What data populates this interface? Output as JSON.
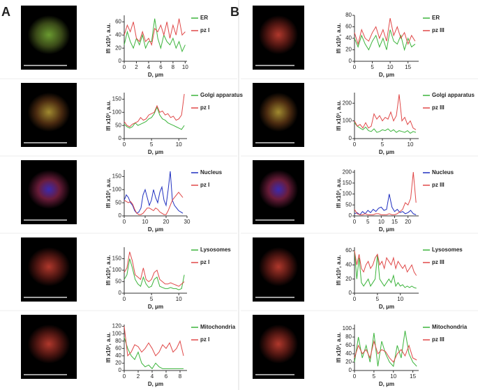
{
  "panels": [
    "A",
    "B"
  ],
  "chart_data": [
    {
      "type": "line",
      "xlabel": "D, μm",
      "ylabel": "Ifl x10³, a.u.",
      "xlim": [
        0,
        10.3
      ],
      "xticks": [
        0,
        2,
        4,
        6,
        8,
        10
      ],
      "ylim": [
        0,
        70
      ],
      "yticks": [
        0,
        20,
        40,
        60
      ],
      "x": [
        0,
        0.5,
        1,
        1.5,
        2,
        2.5,
        3,
        3.5,
        4,
        4.5,
        5,
        5.5,
        6,
        6.5,
        7,
        7.5,
        8,
        8.5,
        9,
        9.5,
        10
      ],
      "series": [
        {
          "name": "ER",
          "color": "#3cb43c",
          "values": [
            25,
            45,
            30,
            20,
            35,
            25,
            40,
            20,
            30,
            30,
            65,
            35,
            20,
            40,
            30,
            25,
            35,
            20,
            30,
            15,
            25
          ]
        },
        {
          "name": "pz I",
          "color": "#e04848",
          "values": [
            40,
            55,
            45,
            60,
            35,
            30,
            45,
            30,
            35,
            25,
            50,
            45,
            55,
            40,
            60,
            35,
            55,
            40,
            65,
            40,
            45
          ]
        }
      ]
    },
    {
      "type": "line",
      "xlabel": "D, μm",
      "ylabel": "Ifl x10³, a.u.",
      "xlim": [
        0,
        11.5
      ],
      "xticks": [
        0,
        5,
        10
      ],
      "ylim": [
        0,
        175
      ],
      "yticks": [
        0,
        50,
        100,
        150
      ],
      "x": [
        0,
        0.5,
        1,
        1.5,
        2,
        2.5,
        3,
        3.5,
        4,
        4.5,
        5,
        5.5,
        6,
        6.5,
        7,
        7.5,
        8,
        8.5,
        9,
        9.5,
        10,
        10.5,
        11
      ],
      "series": [
        {
          "name": "Golgi apparatus",
          "color": "#3cb43c",
          "values": [
            55,
            45,
            40,
            45,
            60,
            50,
            55,
            60,
            65,
            75,
            80,
            95,
            120,
            90,
            75,
            70,
            60,
            55,
            50,
            45,
            40,
            35,
            50
          ]
        },
        {
          "name": "pz I",
          "color": "#e04848",
          "values": [
            65,
            50,
            45,
            55,
            60,
            65,
            80,
            70,
            75,
            90,
            95,
            100,
            125,
            100,
            105,
            90,
            95,
            80,
            85,
            70,
            75,
            90,
            170
          ]
        }
      ]
    },
    {
      "type": "line",
      "xlabel": "D, μm",
      "ylabel": "Ifl x10³, a.u.",
      "xlim": [
        0,
        30
      ],
      "xticks": [
        0,
        10,
        20,
        30
      ],
      "ylim": [
        0,
        175
      ],
      "yticks": [
        0,
        50,
        100,
        150
      ],
      "x": [
        0,
        1,
        2,
        3,
        4,
        5,
        6,
        7,
        8,
        9,
        10,
        11,
        12,
        13,
        14,
        15,
        16,
        17,
        18,
        19,
        20,
        21,
        22,
        23,
        24,
        25,
        26,
        27,
        28
      ],
      "series": [
        {
          "name": "Nucleus",
          "color": "#2030c0",
          "values": [
            60,
            80,
            70,
            50,
            40,
            20,
            10,
            15,
            30,
            80,
            100,
            70,
            40,
            60,
            100,
            70,
            50,
            90,
            110,
            60,
            40,
            100,
            170,
            60,
            40,
            30,
            20,
            15,
            10
          ]
        },
        {
          "name": "pz I",
          "color": "#e04848",
          "values": [
            60,
            55,
            50,
            55,
            45,
            25,
            10,
            5,
            5,
            10,
            20,
            30,
            30,
            25,
            20,
            30,
            25,
            15,
            10,
            5,
            5,
            20,
            40,
            60,
            70,
            80,
            90,
            80,
            70
          ]
        }
      ]
    },
    {
      "type": "line",
      "xlabel": "D, μm",
      "ylabel": "Ifl x10³, a.u.",
      "xlim": [
        0,
        11.5
      ],
      "xticks": [
        0,
        5,
        10
      ],
      "ylim": [
        0,
        200
      ],
      "yticks": [
        0,
        50,
        100,
        150
      ],
      "x": [
        0,
        0.5,
        1,
        1.5,
        2,
        2.5,
        3,
        3.5,
        4,
        4.5,
        5,
        5.5,
        6,
        6.5,
        7,
        7.5,
        8,
        8.5,
        9,
        9.5,
        10,
        10.5,
        11
      ],
      "series": [
        {
          "name": "Lysosomes",
          "color": "#3cb43c",
          "values": [
            60,
            80,
            150,
            110,
            60,
            40,
            30,
            70,
            40,
            25,
            30,
            60,
            70,
            30,
            25,
            20,
            20,
            25,
            20,
            20,
            15,
            20,
            80
          ]
        },
        {
          "name": "pz I",
          "color": "#e04848",
          "values": [
            90,
            110,
            180,
            140,
            80,
            70,
            60,
            110,
            60,
            50,
            60,
            90,
            100,
            60,
            50,
            40,
            40,
            45,
            40,
            35,
            30,
            40,
            50
          ]
        }
      ]
    },
    {
      "type": "line",
      "xlabel": "D, μm",
      "ylabel": "Ifl x10³, a.u.",
      "xlim": [
        0,
        9
      ],
      "xticks": [
        0,
        2,
        4,
        6,
        8
      ],
      "ylim": [
        0,
        125
      ],
      "yticks": [
        0,
        20,
        40,
        60,
        80,
        100,
        120
      ],
      "x": [
        0,
        0.5,
        1,
        1.5,
        2,
        2.5,
        3,
        3.5,
        4,
        4.5,
        5,
        5.5,
        6,
        6.5,
        7,
        7.5,
        8,
        8.5
      ],
      "series": [
        {
          "name": "Mitochondria",
          "color": "#3cb43c",
          "values": [
            90,
            60,
            40,
            30,
            50,
            20,
            10,
            15,
            5,
            20,
            10,
            5,
            5,
            5,
            5,
            5,
            5,
            5
          ]
        },
        {
          "name": "pz I",
          "color": "#e04848",
          "values": [
            120,
            40,
            50,
            70,
            65,
            50,
            60,
            75,
            60,
            40,
            50,
            70,
            60,
            75,
            50,
            60,
            80,
            40
          ]
        }
      ]
    },
    {
      "type": "line",
      "xlabel": "D, μm",
      "ylabel": "Ifl x10³, a.u.",
      "xlim": [
        0,
        18
      ],
      "xticks": [
        0,
        5,
        10,
        15
      ],
      "ylim": [
        0,
        80
      ],
      "yticks": [
        0,
        20,
        40,
        60,
        80
      ],
      "x": [
        0,
        1,
        2,
        3,
        4,
        5,
        6,
        7,
        8,
        9,
        10,
        11,
        12,
        13,
        14,
        15,
        16,
        17
      ],
      "series": [
        {
          "name": "ER",
          "color": "#3cb43c",
          "values": [
            40,
            25,
            45,
            30,
            20,
            35,
            45,
            25,
            40,
            20,
            55,
            35,
            30,
            45,
            20,
            40,
            25,
            30
          ]
        },
        {
          "name": "pz III",
          "color": "#e04848",
          "values": [
            50,
            30,
            55,
            40,
            35,
            50,
            60,
            40,
            55,
            35,
            75,
            45,
            60,
            40,
            50,
            30,
            45,
            35
          ]
        }
      ]
    },
    {
      "type": "line",
      "xlabel": "D, μm",
      "ylabel": "Ifl x10³, a.u.",
      "xlim": [
        0,
        11.5
      ],
      "xticks": [
        0,
        5,
        10
      ],
      "ylim": [
        0,
        260
      ],
      "yticks": [
        0,
        100,
        200
      ],
      "x": [
        0,
        0.5,
        1,
        1.5,
        2,
        2.5,
        3,
        3.5,
        4,
        4.5,
        5,
        5.5,
        6,
        6.5,
        7,
        7.5,
        8,
        8.5,
        9,
        9.5,
        10,
        10.5,
        11
      ],
      "series": [
        {
          "name": "Golgi apparatus",
          "color": "#3cb43c",
          "values": [
            90,
            70,
            60,
            50,
            65,
            45,
            40,
            55,
            35,
            40,
            50,
            45,
            55,
            40,
            50,
            35,
            45,
            40,
            35,
            45,
            30,
            40,
            35
          ]
        },
        {
          "name": "pz III",
          "color": "#e04848",
          "values": [
            100,
            70,
            80,
            60,
            90,
            60,
            70,
            140,
            110,
            130,
            100,
            120,
            110,
            150,
            100,
            130,
            250,
            100,
            120,
            80,
            100,
            60,
            50
          ]
        }
      ]
    },
    {
      "type": "line",
      "xlabel": "D, μm",
      "ylabel": "Ifl x10³, a.u.",
      "xlim": [
        0,
        24
      ],
      "xticks": [
        0,
        5,
        10,
        15,
        20
      ],
      "ylim": [
        0,
        210
      ],
      "yticks": [
        0,
        50,
        100,
        150,
        200
      ],
      "x": [
        0,
        1,
        2,
        3,
        4,
        5,
        6,
        7,
        8,
        9,
        10,
        11,
        12,
        13,
        14,
        15,
        16,
        17,
        18,
        19,
        20,
        21,
        22,
        23
      ],
      "series": [
        {
          "name": "Nucleus",
          "color": "#2030c0",
          "values": [
            10,
            15,
            5,
            20,
            10,
            25,
            15,
            30,
            20,
            35,
            40,
            25,
            30,
            100,
            40,
            20,
            30,
            15,
            20,
            10,
            15,
            25,
            10,
            5
          ]
        },
        {
          "name": "pz III",
          "color": "#e04848",
          "values": [
            30,
            10,
            5,
            5,
            10,
            5,
            5,
            5,
            10,
            10,
            5,
            5,
            5,
            10,
            5,
            5,
            10,
            20,
            30,
            60,
            50,
            80,
            200,
            60
          ]
        }
      ]
    },
    {
      "type": "line",
      "xlabel": "D, μm",
      "ylabel": "Ifl x10³, a.u.",
      "xlim": [
        0,
        14
      ],
      "xticks": [
        0,
        5,
        10
      ],
      "ylim": [
        0,
        65
      ],
      "yticks": [
        0,
        20,
        40,
        60
      ],
      "x": [
        0,
        0.5,
        1,
        1.5,
        2,
        2.5,
        3,
        3.5,
        4,
        4.5,
        5,
        5.5,
        6,
        6.5,
        7,
        7.5,
        8,
        8.5,
        9,
        9.5,
        10,
        10.5,
        11,
        11.5,
        12,
        12.5,
        13,
        13.5
      ],
      "series": [
        {
          "name": "Lysosomes",
          "color": "#3cb43c",
          "values": [
            60,
            20,
            50,
            15,
            10,
            15,
            20,
            10,
            15,
            20,
            55,
            20,
            15,
            10,
            15,
            20,
            15,
            25,
            10,
            15,
            10,
            12,
            8,
            10,
            8,
            10,
            8,
            7
          ]
        },
        {
          "name": "pz III",
          "color": "#e04848",
          "values": [
            60,
            40,
            55,
            35,
            30,
            40,
            45,
            35,
            40,
            50,
            55,
            40,
            45,
            35,
            50,
            45,
            40,
            50,
            35,
            45,
            40,
            35,
            40,
            30,
            35,
            40,
            30,
            25
          ]
        }
      ]
    },
    {
      "type": "line",
      "xlabel": "D, μm",
      "ylabel": "Ifl x10³, a.u.",
      "xlim": [
        0,
        16.5
      ],
      "xticks": [
        0,
        5,
        10,
        15
      ],
      "ylim": [
        0,
        110
      ],
      "yticks": [
        0,
        20,
        40,
        60,
        80,
        100
      ],
      "x": [
        0,
        1,
        2,
        3,
        4,
        5,
        6,
        7,
        8,
        9,
        10,
        11,
        12,
        13,
        14,
        15,
        16
      ],
      "series": [
        {
          "name": "Mitochondria",
          "color": "#3cb43c",
          "values": [
            20,
            80,
            30,
            60,
            20,
            90,
            10,
            70,
            40,
            20,
            10,
            60,
            30,
            95,
            40,
            20,
            10
          ]
        },
        {
          "name": "pz III",
          "color": "#e04848",
          "values": [
            30,
            60,
            40,
            50,
            30,
            70,
            40,
            50,
            45,
            30,
            20,
            40,
            50,
            35,
            60,
            30,
            25
          ]
        }
      ]
    }
  ]
}
